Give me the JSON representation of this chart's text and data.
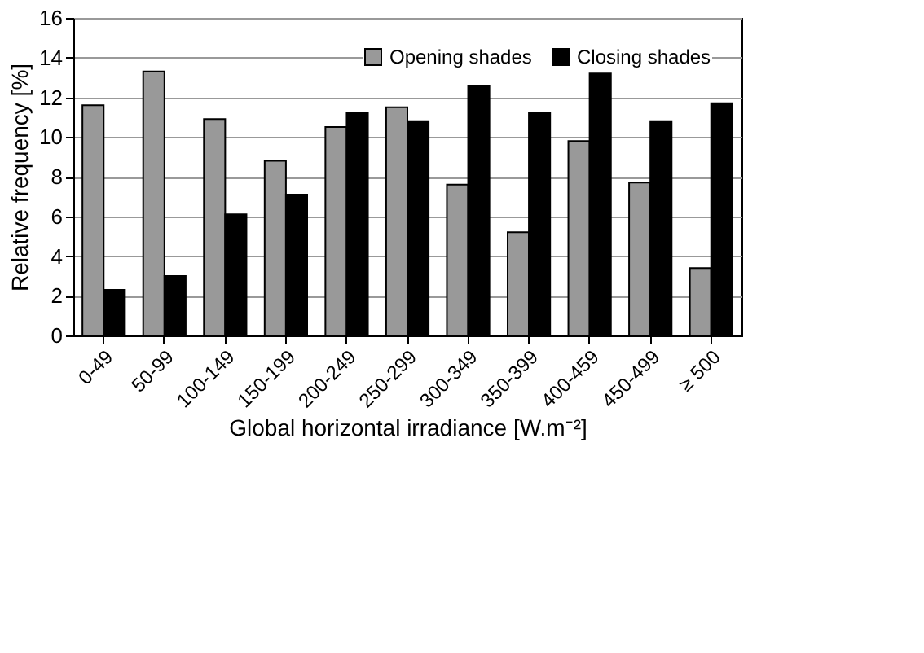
{
  "chart_data": {
    "type": "bar",
    "xlabel": "Global horizontal irradiance [W.m⁻²]",
    "ylabel": "Relative frequency [%]",
    "categories": [
      "0-49",
      "50-99",
      "100-149",
      "150-199",
      "200-249",
      "250-299",
      "300-349",
      "350-399",
      "400-459",
      "450-499",
      "≥ 500"
    ],
    "series": [
      {
        "name": "Opening shades",
        "color": "#999999",
        "values": [
          11.6,
          13.3,
          10.9,
          8.8,
          10.5,
          11.5,
          7.6,
          5.2,
          9.8,
          7.7,
          3.4
        ]
      },
      {
        "name": "Closing shades",
        "color": "#000000",
        "values": [
          2.3,
          3.0,
          6.1,
          7.1,
          11.2,
          10.8,
          12.6,
          11.2,
          13.2,
          10.8,
          11.7
        ]
      }
    ],
    "ylim": [
      0,
      16
    ],
    "yticks": [
      0,
      2,
      4,
      6,
      8,
      10,
      12,
      14,
      16
    ],
    "grid": "y",
    "legend": "top right"
  }
}
